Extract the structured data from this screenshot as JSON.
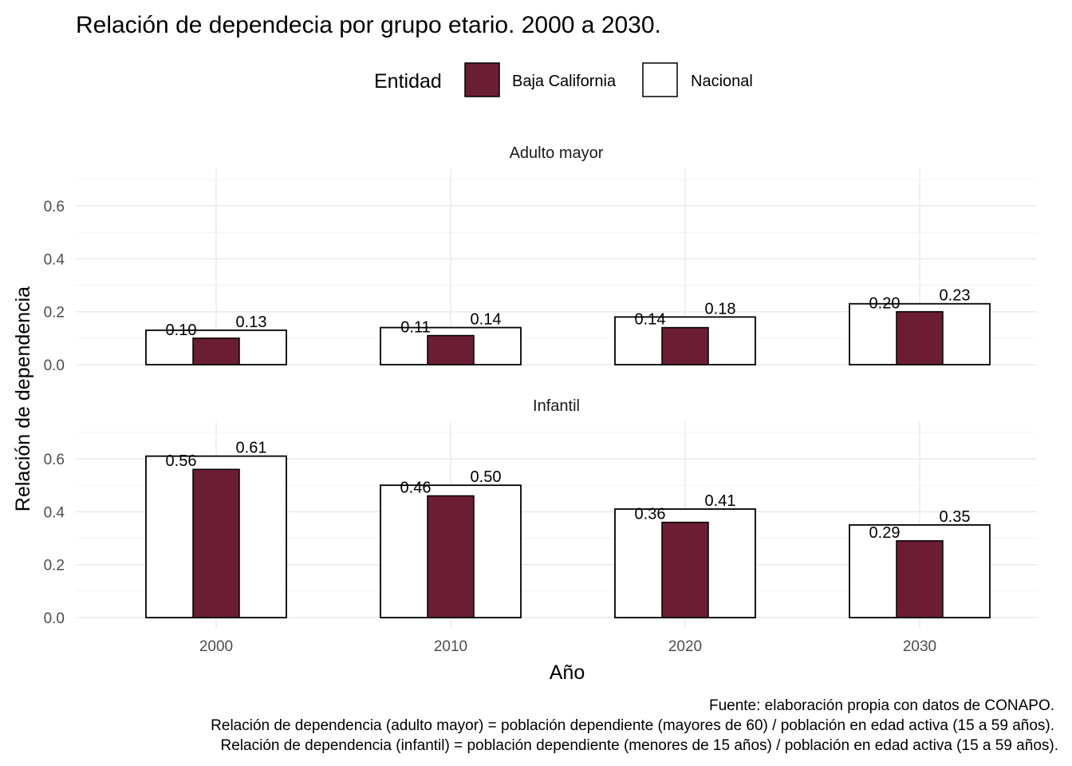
{
  "chart_data": {
    "type": "bar",
    "title": "Relación de dependecia por grupo etario. 2000 a 2030.",
    "xlabel": "Año",
    "ylabel": "Relación de dependencia",
    "categories": [
      "2000",
      "2010",
      "2020",
      "2030"
    ],
    "ylim": [
      0,
      0.7
    ],
    "yticks": [
      "0.0",
      "0.2",
      "0.4",
      "0.6"
    ],
    "grid": true,
    "legend": {
      "title": "Entidad",
      "position": "top",
      "entries": [
        {
          "name": "Baja California",
          "color": "#6b1e33"
        },
        {
          "name": "Nacional",
          "color": "#ffffff"
        }
      ]
    },
    "facets": [
      {
        "name": "Adulto mayor",
        "series": [
          {
            "name": "Nacional",
            "values": [
              0.13,
              0.14,
              0.18,
              0.23
            ],
            "labels": [
              "0.13",
              "0.14",
              "0.18",
              "0.23"
            ]
          },
          {
            "name": "Baja California",
            "values": [
              0.1,
              0.11,
              0.14,
              0.2
            ],
            "labels": [
              "0.10",
              "0.11",
              "0.14",
              "0.20"
            ]
          }
        ]
      },
      {
        "name": "Infantil",
        "series": [
          {
            "name": "Nacional",
            "values": [
              0.61,
              0.5,
              0.41,
              0.35
            ],
            "labels": [
              "0.61",
              "0.50",
              "0.41",
              "0.35"
            ]
          },
          {
            "name": "Baja California",
            "values": [
              0.56,
              0.46,
              0.36,
              0.29
            ],
            "labels": [
              "0.56",
              "0.46",
              "0.36",
              "0.29"
            ]
          }
        ]
      }
    ],
    "caption": [
      "Fuente: elaboración propia con datos de CONAPO.",
      "Relación de dependencia (adulto mayor) = población dependiente (mayores de 60) / población en edad activa (15 a 59 años).",
      "Relación de dependencia (infantil) = población dependiente (menores de 15 años) / población en edad activa (15 a 59 años)."
    ]
  },
  "colors": {
    "baja_california": "#6b1e33",
    "nacional": "#ffffff",
    "bar_outline": "#000000"
  }
}
